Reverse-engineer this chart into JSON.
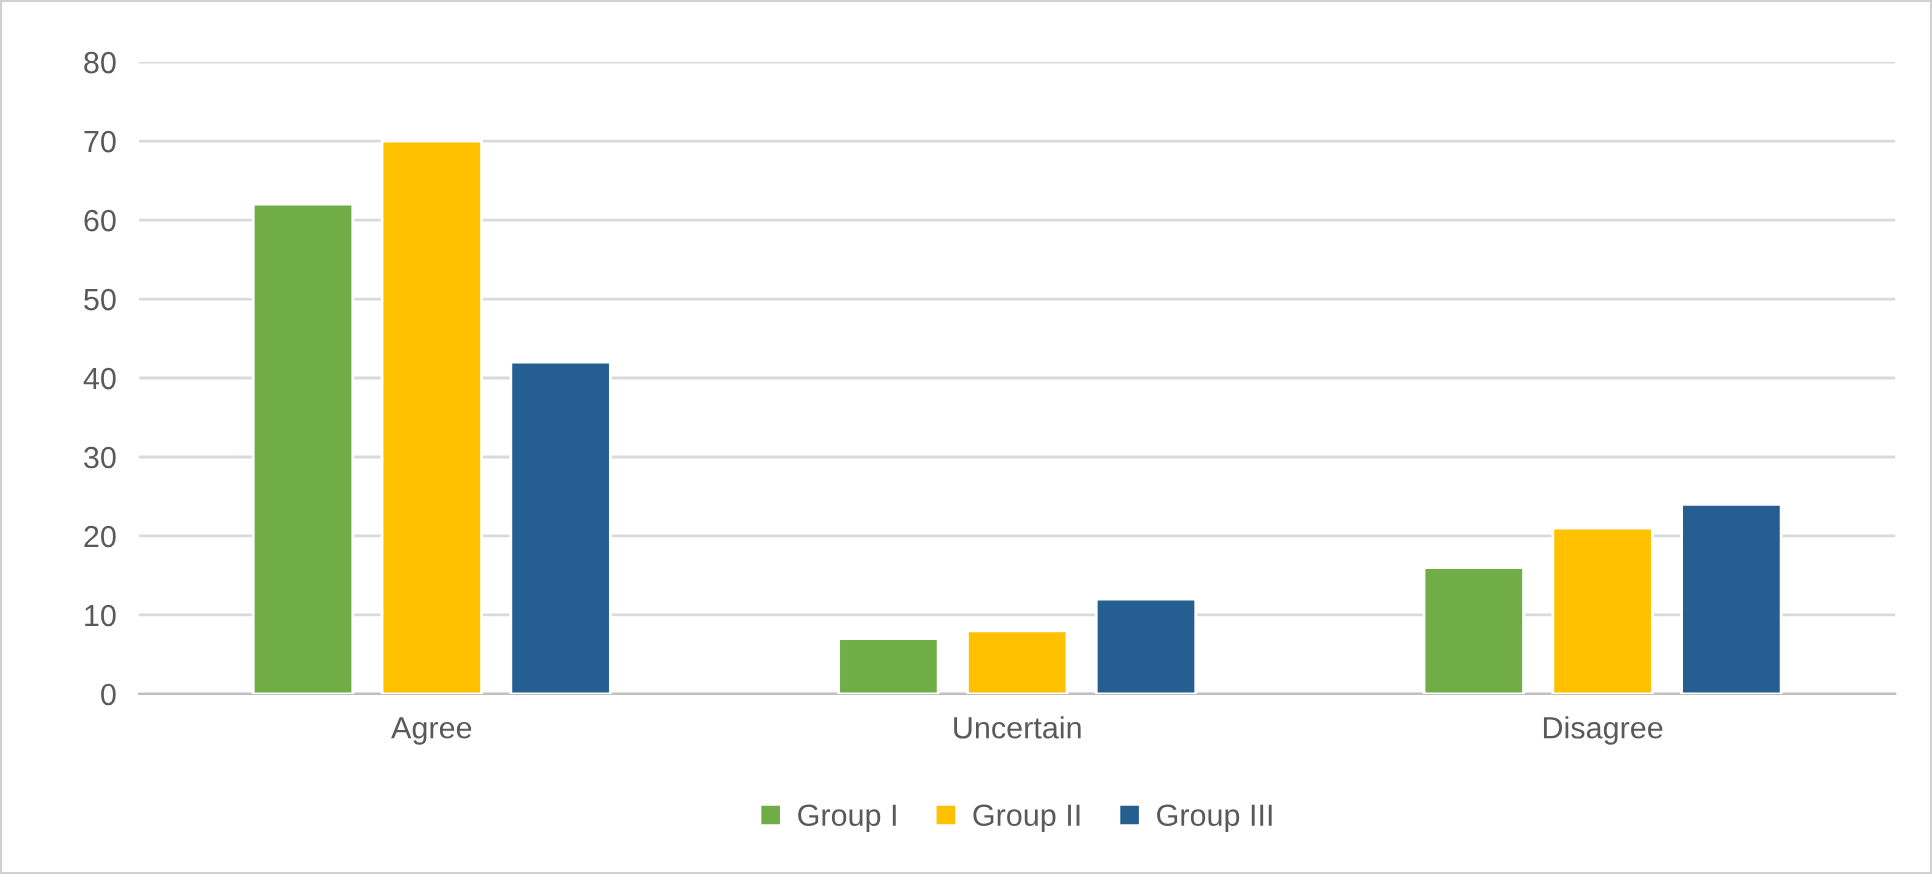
{
  "chart_data": {
    "type": "bar",
    "categories": [
      "Agree",
      "Uncertain",
      "Disagree"
    ],
    "series": [
      {
        "name": "Group I",
        "color": "#70ad47",
        "values": [
          62,
          7,
          16
        ]
      },
      {
        "name": "Group II",
        "color": "#ffc000",
        "values": [
          70,
          8,
          21
        ]
      },
      {
        "name": "Group III",
        "color": "#255e91",
        "values": [
          42,
          12,
          24
        ]
      }
    ],
    "ylim": [
      0,
      80
    ],
    "yticks": [
      0,
      10,
      20,
      30,
      40,
      50,
      60,
      70,
      80
    ],
    "grid": "y",
    "legend": "bottom"
  }
}
